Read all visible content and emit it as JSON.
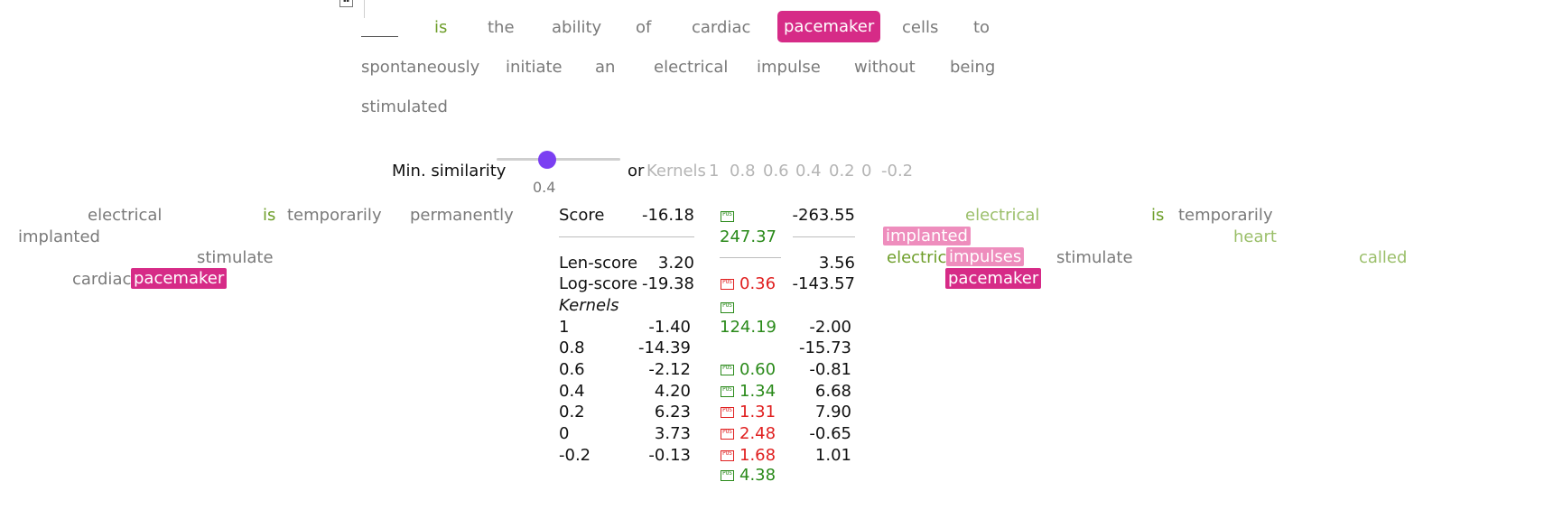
{
  "question": {
    "blank": "",
    "words": [
      "is",
      "the",
      "ability",
      "of",
      "cardiac",
      "pacemaker",
      "cells",
      "to",
      "spontaneously",
      "initiate",
      "an",
      "electrical",
      "impulse",
      "without",
      "being",
      "stimulated"
    ]
  },
  "controls": {
    "min_similarity_label": "Min. similarity",
    "slider_value": "0.4",
    "slider_fraction": 0.4,
    "or_label": "or",
    "kernels_label": "Kernels",
    "kernels": [
      "1",
      "0.8",
      "0.6",
      "0.4",
      "0.2",
      "0",
      "-0.2"
    ]
  },
  "left_doc": {
    "words": [
      "electrical",
      "is",
      "temporarily",
      "permanently",
      "implanted",
      "stimulate",
      "cardiac",
      "pacemaker"
    ]
  },
  "right_doc": {
    "words": [
      "electrical",
      "is",
      "temporarily",
      "implanted",
      "heart",
      "electric",
      "impulses",
      "stimulate",
      "called",
      "pacemaker"
    ]
  },
  "scores": {
    "score_label": "Score",
    "left_score": "-16.18",
    "right_score": "-263.55",
    "diff_score": "247.37",
    "len_label": "Len-score",
    "left_len": "3.20",
    "right_len": "3.56",
    "log_label": "Log-score",
    "left_log": "-19.38",
    "diff_log": "0.36",
    "right_log": "-143.57",
    "kernels_heading": "Kernels",
    "diff_kernel_top": "124.19",
    "kernel_rows": [
      {
        "k": "1",
        "left": "-1.40",
        "right": "-2.00"
      },
      {
        "k": "0.8",
        "left": "-14.39",
        "right": "-15.73"
      },
      {
        "k": "0.6",
        "left": "-2.12",
        "diff": "0.60",
        "right": "-0.81"
      },
      {
        "k": "0.4",
        "left": "4.20",
        "diff": "1.34",
        "right": "6.68"
      },
      {
        "k": "0.2",
        "left": "6.23",
        "diff": "1.31",
        "right": "7.90"
      },
      {
        "k": "0",
        "left": "3.73",
        "diff": "2.48",
        "right": "-0.65"
      },
      {
        "k": "-0.2",
        "left": "-0.13",
        "diff": "1.68",
        "right": "1.01"
      }
    ],
    "diff_last": "4.38",
    "icon_text": "POS"
  },
  "colors": {
    "accent_pink": "#d62b87",
    "slider_thumb": "#7b3ff2",
    "positive": "#2a8a1a",
    "negative": "#e02020"
  }
}
